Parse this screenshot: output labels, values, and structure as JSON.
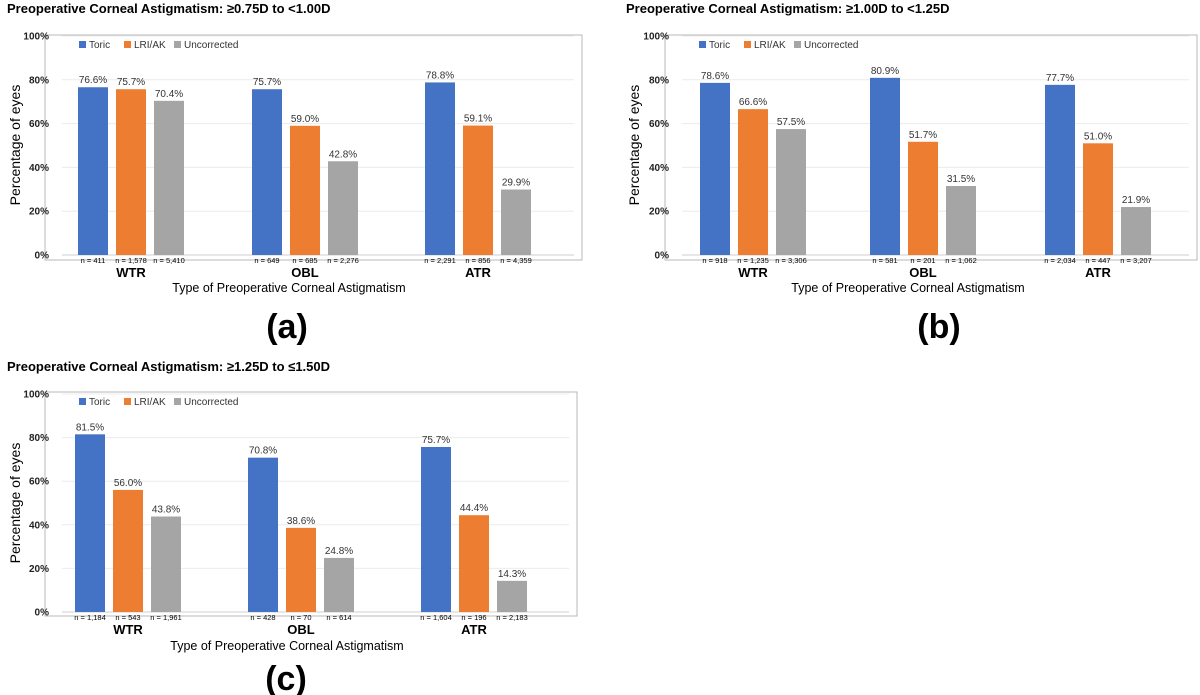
{
  "colors": {
    "toric": "#4472C4",
    "lri_ak": "#ED7D31",
    "uncorrected": "#A5A5A5"
  },
  "chart_data": [
    {
      "id": "a",
      "type": "bar",
      "title": "Preoperative Corneal Astigmatism: ≥0.75D to <1.00D",
      "panel_label": "(a)",
      "xlabel": "Type of Preoperative Corneal Astigmatism",
      "ylabel": "Percentage of eyes",
      "ylim": [
        0,
        100
      ],
      "yticks": [
        "0%",
        "20%",
        "40%",
        "60%",
        "80%",
        "100%"
      ],
      "legend": [
        "Toric",
        "LRI/AK",
        "Uncorrected"
      ],
      "legend_position": "top-left",
      "categories": [
        "WTR",
        "OBL",
        "ATR"
      ],
      "series": [
        {
          "name": "Toric",
          "values": [
            76.6,
            75.7,
            78.8
          ],
          "labels": [
            "76.6%",
            "75.7%",
            "78.8%"
          ],
          "n": [
            "n = 411",
            "n = 649",
            "n = 2,291"
          ]
        },
        {
          "name": "LRI/AK",
          "values": [
            75.7,
            59.0,
            59.1
          ],
          "labels": [
            "75.7%",
            "59.0%",
            "59.1%"
          ],
          "n": [
            "n = 1,578",
            "n = 685",
            "n = 856"
          ]
        },
        {
          "name": "Uncorrected",
          "values": [
            70.4,
            42.8,
            29.9
          ],
          "labels": [
            "70.4%",
            "42.8%",
            "29.9%"
          ],
          "n": [
            "n = 5,410",
            "n = 2,276",
            "n = 4,359"
          ]
        }
      ]
    },
    {
      "id": "b",
      "type": "bar",
      "title": "Preoperative Corneal Astigmatism: ≥1.00D to <1.25D",
      "panel_label": "(b)",
      "xlabel": "Type of Preoperative Corneal Astigmatism",
      "ylabel": "Percentage of eyes",
      "ylim": [
        0,
        100
      ],
      "yticks": [
        "0%",
        "20%",
        "40%",
        "60%",
        "80%",
        "100%"
      ],
      "legend": [
        "Toric",
        "LRI/AK",
        "Uncorrected"
      ],
      "legend_position": "top-left",
      "categories": [
        "WTR",
        "OBL",
        "ATR"
      ],
      "series": [
        {
          "name": "Toric",
          "values": [
            78.6,
            80.9,
            77.7
          ],
          "labels": [
            "78.6%",
            "80.9%",
            "77.7%"
          ],
          "n": [
            "n = 918",
            "n = 581",
            "n = 2,034"
          ]
        },
        {
          "name": "LRI/AK",
          "values": [
            66.6,
            51.7,
            51.0
          ],
          "labels": [
            "66.6%",
            "51.7%",
            "51.0%"
          ],
          "n": [
            "n = 1,235",
            "n = 201",
            "n = 447"
          ]
        },
        {
          "name": "Uncorrected",
          "values": [
            57.5,
            31.5,
            21.9
          ],
          "labels": [
            "57.5%",
            "31.5%",
            "21.9%"
          ],
          "n": [
            "n = 3,306",
            "n = 1,062",
            "n = 3,207"
          ]
        }
      ]
    },
    {
      "id": "c",
      "type": "bar",
      "title": "Preoperative Corneal Astigmatism: ≥1.25D to ≤1.50D",
      "panel_label": "(c)",
      "xlabel": "Type of Preoperative Corneal Astigmatism",
      "ylabel": "Percentage of eyes",
      "ylim": [
        0,
        100
      ],
      "yticks": [
        "0%",
        "20%",
        "40%",
        "60%",
        "80%",
        "100%"
      ],
      "legend": [
        "Toric",
        "LRI/AK",
        "Uncorrected"
      ],
      "legend_position": "top-left",
      "categories": [
        "WTR",
        "OBL",
        "ATR"
      ],
      "series": [
        {
          "name": "Toric",
          "values": [
            81.5,
            70.8,
            75.7
          ],
          "labels": [
            "81.5%",
            "70.8%",
            "75.7%"
          ],
          "n": [
            "n = 1,184",
            "n = 428",
            "n = 1,604"
          ]
        },
        {
          "name": "LRI/AK",
          "values": [
            56.0,
            38.6,
            44.4
          ],
          "labels": [
            "56.0%",
            "38.6%",
            "44.4%"
          ],
          "n": [
            "n = 543",
            "n = 70",
            "n = 196"
          ]
        },
        {
          "name": "Uncorrected",
          "values": [
            43.8,
            24.8,
            14.3
          ],
          "labels": [
            "43.8%",
            "24.8%",
            "14.3%"
          ],
          "n": [
            "n = 1,961",
            "n = 614",
            "n = 2,183"
          ]
        }
      ]
    }
  ]
}
